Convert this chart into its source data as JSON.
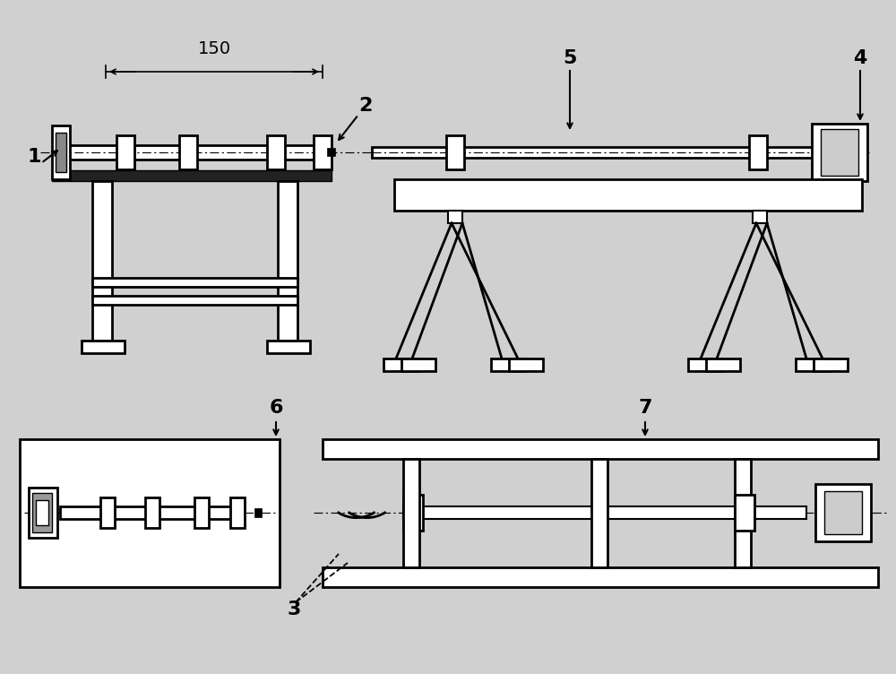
{
  "bg_color": "#d0d0d0",
  "white_fill": "#ffffff",
  "gray_fill": "#bbbbbb",
  "dark_fill": "#222222",
  "fig_width": 10.0,
  "fig_height": 7.52,
  "dpi": 100,
  "label_fontsize": 16,
  "dim_text": "150",
  "dim_fontsize": 14
}
